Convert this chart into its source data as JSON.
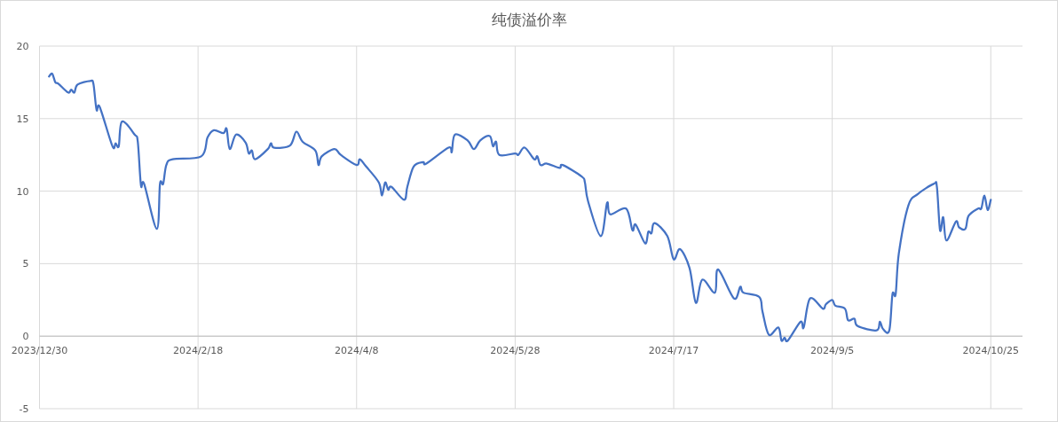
{
  "chart_data": {
    "type": "line",
    "title": "纯债溢价率",
    "x": [
      "2024-01-02",
      "2024-01-03",
      "2024-01-04",
      "2024-01-05",
      "2024-01-08",
      "2024-01-09",
      "2024-01-10",
      "2024-01-11",
      "2024-01-15",
      "2024-01-16",
      "2024-01-17",
      "2024-01-18",
      "2024-01-22",
      "2024-01-23",
      "2024-01-24",
      "2024-01-25",
      "2024-01-29",
      "2024-01-30",
      "2024-01-31",
      "2024-02-01",
      "2024-02-05",
      "2024-02-06",
      "2024-02-07",
      "2024-02-08",
      "2024-02-10",
      "2024-02-19",
      "2024-02-21",
      "2024-02-23",
      "2024-02-26",
      "2024-02-27",
      "2024-02-28",
      "2024-03-01",
      "2024-03-04",
      "2024-03-05",
      "2024-03-06",
      "2024-03-07",
      "2024-03-11",
      "2024-03-12",
      "2024-03-13",
      "2024-03-18",
      "2024-03-20",
      "2024-03-22",
      "2024-03-26",
      "2024-03-27",
      "2024-03-28",
      "2024-04-01",
      "2024-04-03",
      "2024-04-08",
      "2024-04-09",
      "2024-04-11",
      "2024-04-15",
      "2024-04-16",
      "2024-04-17",
      "2024-04-18",
      "2024-04-19",
      "2024-04-23",
      "2024-04-24",
      "2024-04-26",
      "2024-04-29",
      "2024-04-30",
      "2024-05-07",
      "2024-05-08",
      "2024-05-09",
      "2024-05-13",
      "2024-05-15",
      "2024-05-17",
      "2024-05-20",
      "2024-05-21",
      "2024-05-22",
      "2024-05-23",
      "2024-05-28",
      "2024-05-29",
      "2024-05-31",
      "2024-06-03",
      "2024-06-04",
      "2024-06-05",
      "2024-06-07",
      "2024-06-11",
      "2024-06-12",
      "2024-06-18",
      "2024-06-19",
      "2024-06-20",
      "2024-06-24",
      "2024-06-26",
      "2024-06-27",
      "2024-07-02",
      "2024-07-04",
      "2024-07-05",
      "2024-07-08",
      "2024-07-09",
      "2024-07-10",
      "2024-07-11",
      "2024-07-15",
      "2024-07-17",
      "2024-07-19",
      "2024-07-22",
      "2024-07-24",
      "2024-07-26",
      "2024-07-30",
      "2024-07-31",
      "2024-08-05",
      "2024-08-07",
      "2024-08-08",
      "2024-08-13",
      "2024-08-14",
      "2024-08-16",
      "2024-08-19",
      "2024-08-20",
      "2024-08-21",
      "2024-08-22",
      "2024-08-26",
      "2024-08-27",
      "2024-08-29",
      "2024-09-02",
      "2024-09-03",
      "2024-09-05",
      "2024-09-06",
      "2024-09-09",
      "2024-09-10",
      "2024-09-12",
      "2024-09-13",
      "2024-09-19",
      "2024-09-20",
      "2024-09-21",
      "2024-09-23",
      "2024-09-24",
      "2024-09-25",
      "2024-09-26",
      "2024-09-29",
      "2024-10-02",
      "2024-10-07",
      "2024-10-08",
      "2024-10-09",
      "2024-10-10",
      "2024-10-11",
      "2024-10-14",
      "2024-10-15",
      "2024-10-17",
      "2024-10-18",
      "2024-10-21",
      "2024-10-22",
      "2024-10-23",
      "2024-10-24",
      "2024-10-25"
    ],
    "values": [
      17.9,
      18.1,
      17.5,
      17.4,
      16.8,
      17.0,
      16.8,
      17.35,
      17.6,
      17.4,
      15.6,
      15.8,
      13.1,
      13.3,
      13.1,
      14.8,
      13.9,
      13.4,
      10.4,
      10.5,
      7.4,
      10.5,
      10.5,
      11.8,
      12.2,
      12.4,
      13.7,
      14.2,
      14.0,
      14.3,
      12.9,
      13.9,
      13.35,
      12.6,
      12.8,
      12.2,
      12.9,
      13.3,
      13.0,
      13.15,
      14.1,
      13.4,
      12.8,
      11.8,
      12.4,
      12.9,
      12.5,
      11.8,
      12.2,
      11.7,
      10.6,
      9.7,
      10.6,
      10.1,
      10.3,
      9.4,
      10.3,
      11.7,
      12.0,
      11.9,
      13.0,
      12.7,
      13.9,
      13.5,
      12.9,
      13.5,
      13.8,
      13.1,
      13.4,
      12.5,
      12.6,
      12.5,
      13.0,
      12.2,
      12.4,
      11.8,
      11.9,
      11.6,
      11.8,
      11.0,
      10.6,
      9.3,
      6.9,
      9.2,
      8.4,
      8.8,
      7.3,
      7.7,
      6.4,
      7.2,
      7.1,
      7.8,
      6.9,
      5.3,
      6.0,
      4.7,
      2.3,
      3.9,
      3.0,
      4.6,
      2.6,
      3.4,
      3.0,
      2.7,
      1.7,
      0.1,
      0.6,
      -0.3,
      -0.1,
      -0.3,
      1.0,
      0.6,
      2.6,
      1.9,
      2.2,
      2.5,
      2.1,
      1.9,
      1.1,
      1.2,
      0.7,
      0.4,
      1.0,
      0.5,
      0.4,
      2.9,
      2.9,
      5.7,
      9.0,
      9.8,
      10.5,
      10.3,
      7.3,
      8.2,
      6.6,
      7.9,
      7.5,
      7.4,
      8.3,
      8.8,
      8.8,
      9.7,
      8.7,
      9.4
    ],
    "color": "#4472c4",
    "xlim": [
      "2023-12-30",
      "2024-11-04"
    ],
    "xticks": [
      {
        "value": "2023-12-30",
        "label": "2023/12/30"
      },
      {
        "value": "2024-02-18",
        "label": "2024/2/18"
      },
      {
        "value": "2024-04-08",
        "label": "2024/4/8"
      },
      {
        "value": "2024-05-28",
        "label": "2024/5/28"
      },
      {
        "value": "2024-07-17",
        "label": "2024/7/17"
      },
      {
        "value": "2024-09-05",
        "label": "2024/9/5"
      },
      {
        "value": "2024-10-25",
        "label": "2024/10/25"
      }
    ],
    "ylim": [
      -5,
      20
    ],
    "yticks": [
      -5,
      0,
      5,
      10,
      15,
      20
    ],
    "grid": true,
    "line_style": "solid",
    "marker": "none"
  }
}
